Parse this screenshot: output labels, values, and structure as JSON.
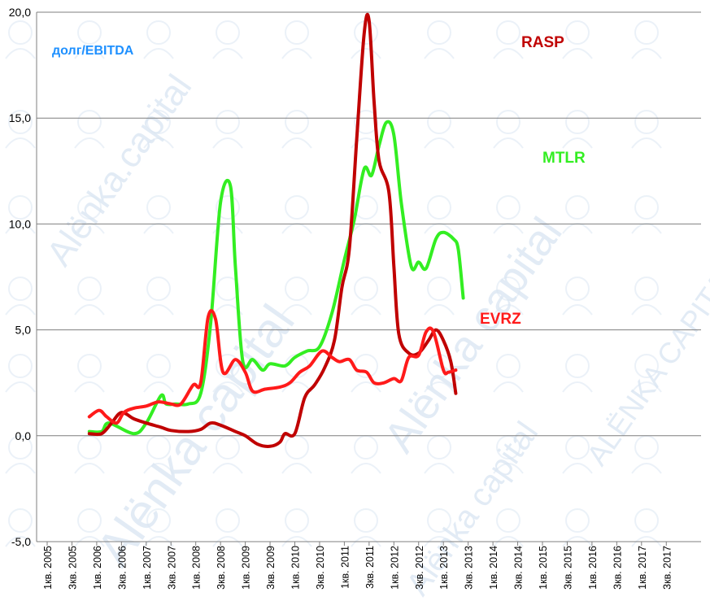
{
  "colors": {
    "grid": "#7f7f7f",
    "axis": "#7f7f7f",
    "title": "#1e90ff",
    "watermark": "#dbe7f3"
  },
  "chart_data": {
    "type": "line",
    "title": "долг/EBITDA",
    "ylim": [
      -5,
      20
    ],
    "y_ticks": [
      "-5,0",
      "0,0",
      "5,0",
      "10,0",
      "15,0",
      "20,0"
    ],
    "x_ticks": [
      "1кв. 2005",
      "3кв. 2005",
      "1кв. 2006",
      "3кв. 2006",
      "1кв. 2007",
      "3кв. 2007",
      "1кв. 2008",
      "3кв. 2008",
      "1кв. 2009",
      "3кв. 2009",
      "1кв. 2010",
      "3кв. 2010",
      "1кв. 2011",
      "3кв. 2011",
      "1кв. 2012",
      "3кв. 2012",
      "1кв. 2013",
      "3кв. 2013",
      "1кв. 2014",
      "3кв. 2014",
      "1кв. 2015",
      "3кв. 2015",
      "1кв. 2016",
      "3кв. 2016",
      "1кв. 2017",
      "3кв. 2017"
    ],
    "grid": true,
    "series": [
      {
        "name": "MTLR",
        "color": "#33ee22",
        "points": [
          [
            1.7,
            0.2
          ],
          [
            2.2,
            0.2
          ],
          [
            2.5,
            0.6
          ],
          [
            3.5,
            0.1
          ],
          [
            4.0,
            0.6
          ],
          [
            4.6,
            1.9
          ],
          [
            4.8,
            1.5
          ],
          [
            5.2,
            1.5
          ],
          [
            5.7,
            1.5
          ],
          [
            6.2,
            2.0
          ],
          [
            6.6,
            5.3
          ],
          [
            7.0,
            11.0
          ],
          [
            7.4,
            11.8
          ],
          [
            7.6,
            8.0
          ],
          [
            7.9,
            3.5
          ],
          [
            8.3,
            3.6
          ],
          [
            8.7,
            3.1
          ],
          [
            9.0,
            3.4
          ],
          [
            9.6,
            3.3
          ],
          [
            10.0,
            3.7
          ],
          [
            10.5,
            4.0
          ],
          [
            11.0,
            4.2
          ],
          [
            11.5,
            5.8
          ],
          [
            12.0,
            8.3
          ],
          [
            12.4,
            10.2
          ],
          [
            12.8,
            12.6
          ],
          [
            13.1,
            12.3
          ],
          [
            13.4,
            13.7
          ],
          [
            13.7,
            14.8
          ],
          [
            14.0,
            14.2
          ],
          [
            14.3,
            11.0
          ],
          [
            14.7,
            8.0
          ],
          [
            15.0,
            8.2
          ],
          [
            15.3,
            7.9
          ],
          [
            15.7,
            9.3
          ],
          [
            16.0,
            9.6
          ],
          [
            16.4,
            9.3
          ],
          [
            16.6,
            8.8
          ],
          [
            16.8,
            6.5
          ]
        ]
      },
      {
        "name": "RASP",
        "color": "#c00000",
        "points": [
          [
            1.7,
            0.1
          ],
          [
            2.2,
            0.1
          ],
          [
            2.6,
            0.6
          ],
          [
            3.0,
            1.1
          ],
          [
            3.5,
            0.8
          ],
          [
            4.0,
            0.6
          ],
          [
            4.6,
            0.4
          ],
          [
            5.0,
            0.25
          ],
          [
            5.7,
            0.2
          ],
          [
            6.2,
            0.3
          ],
          [
            6.6,
            0.6
          ],
          [
            7.0,
            0.5
          ],
          [
            7.6,
            0.2
          ],
          [
            8.0,
            0.0
          ],
          [
            8.5,
            -0.4
          ],
          [
            9.0,
            -0.5
          ],
          [
            9.4,
            -0.3
          ],
          [
            9.6,
            0.1
          ],
          [
            10.0,
            0.1
          ],
          [
            10.4,
            1.8
          ],
          [
            10.8,
            2.4
          ],
          [
            11.2,
            3.2
          ],
          [
            11.6,
            4.5
          ],
          [
            11.9,
            7.0
          ],
          [
            12.2,
            8.8
          ],
          [
            12.5,
            14.0
          ],
          [
            12.8,
            19.0
          ],
          [
            13.0,
            19.6
          ],
          [
            13.2,
            15.8
          ],
          [
            13.4,
            13.0
          ],
          [
            13.8,
            11.5
          ],
          [
            14.0,
            8.0
          ],
          [
            14.2,
            4.8
          ],
          [
            14.6,
            3.9
          ],
          [
            15.0,
            3.9
          ],
          [
            15.4,
            4.5
          ],
          [
            15.7,
            5.0
          ],
          [
            16.0,
            4.5
          ],
          [
            16.3,
            3.5
          ],
          [
            16.5,
            2.0
          ]
        ]
      },
      {
        "name": "EVRZ",
        "color": "#ff1a1a",
        "points": [
          [
            1.7,
            0.9
          ],
          [
            2.1,
            1.2
          ],
          [
            2.4,
            0.9
          ],
          [
            2.8,
            0.6
          ],
          [
            3.1,
            1.1
          ],
          [
            3.5,
            1.3
          ],
          [
            4.0,
            1.4
          ],
          [
            4.5,
            1.6
          ],
          [
            5.0,
            1.5
          ],
          [
            5.4,
            1.5
          ],
          [
            5.9,
            2.4
          ],
          [
            6.2,
            2.5
          ],
          [
            6.5,
            5.6
          ],
          [
            6.8,
            5.5
          ],
          [
            7.1,
            3.0
          ],
          [
            7.6,
            3.6
          ],
          [
            8.0,
            3.0
          ],
          [
            8.3,
            2.1
          ],
          [
            8.8,
            2.2
          ],
          [
            9.4,
            2.3
          ],
          [
            9.8,
            2.5
          ],
          [
            10.2,
            3.0
          ],
          [
            10.6,
            3.3
          ],
          [
            11.1,
            4.0
          ],
          [
            11.5,
            3.7
          ],
          [
            11.8,
            3.5
          ],
          [
            12.2,
            3.6
          ],
          [
            12.5,
            3.1
          ],
          [
            12.9,
            3.0
          ],
          [
            13.2,
            2.5
          ],
          [
            13.6,
            2.5
          ],
          [
            14.0,
            2.7
          ],
          [
            14.3,
            2.6
          ],
          [
            14.6,
            3.7
          ],
          [
            15.0,
            3.8
          ],
          [
            15.3,
            4.9
          ],
          [
            15.6,
            4.9
          ],
          [
            16.0,
            3.1
          ],
          [
            16.2,
            3.0
          ],
          [
            16.5,
            3.1
          ]
        ]
      }
    ],
    "series_labels": [
      "RASP",
      "MTLR",
      "EVRZ"
    ]
  },
  "watermark_text": [
    "Alёnka.capital",
    "Alёnka capital",
    "Alёnka capital",
    "Alёnka capital",
    "ALЁNKA CAPITAL"
  ]
}
